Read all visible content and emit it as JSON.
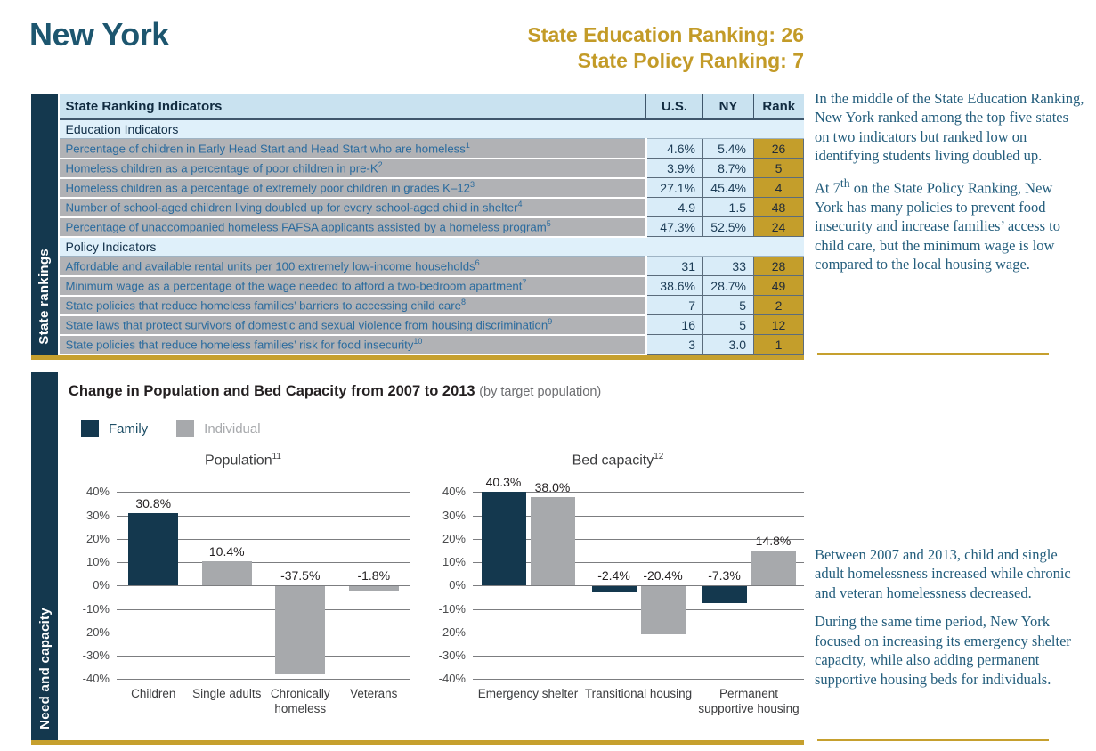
{
  "colors": {
    "dark_teal": "#14384e",
    "gold": "#c6a02e",
    "table_label_blue": "#2a6b9e",
    "rank_cell_gold": "#c49e2b",
    "individual_gray": "#a7a9ac",
    "serif_text_blue": "#235d7c"
  },
  "header": {
    "state_name": "New York",
    "education_ranking": "State Education Ranking: 26",
    "policy_ranking": "State Policy Ranking: 7"
  },
  "rankings_table": {
    "sidebar_label": "State rankings",
    "columns": {
      "indicator": "State Ranking Indicators",
      "us": "U.S.",
      "ny": "NY",
      "rank": "Rank"
    },
    "section1": "Education Indicators",
    "section2": "Policy Indicators",
    "rows": [
      {
        "label": "Percentage of children in Early Head Start and Head Start who are homeless",
        "sup": "1",
        "us": "4.6%",
        "ny": "5.4%",
        "rank": "26"
      },
      {
        "label": "Homeless children as a percentage of poor children in pre-K",
        "sup": "2",
        "us": "3.9%",
        "ny": "8.7%",
        "rank": "5"
      },
      {
        "label": "Homeless children as a percentage of extremely poor children in grades K–12",
        "sup": "3",
        "us": "27.1%",
        "ny": "45.4%",
        "rank": "4"
      },
      {
        "label": "Number of school-aged children living doubled up for every school-aged child in shelter",
        "sup": "4",
        "us": "4.9",
        "ny": "1.5",
        "rank": "48"
      },
      {
        "label": "Percentage of unaccompanied homeless FAFSA applicants assisted by a homeless program",
        "sup": "5",
        "us": "47.3%",
        "ny": "52.5%",
        "rank": "24"
      },
      {
        "label": "Affordable and available rental units per 100 extremely low-income households",
        "sup": "6",
        "us": "31",
        "ny": "33",
        "rank": "28"
      },
      {
        "label": "Minimum wage as a percentage of the wage needed to afford a two-bedroom apartment",
        "sup": "7",
        "us": "38.6%",
        "ny": "28.7%",
        "rank": "49"
      },
      {
        "label": "State policies that reduce homeless families’ barriers to accessing child care",
        "sup": "8",
        "us": "7",
        "ny": "5",
        "rank": "2"
      },
      {
        "label": "State laws that protect survivors of domestic and sexual violence from housing discrimination",
        "sup": "9",
        "us": "16",
        "ny": "5",
        "rank": "12"
      },
      {
        "label": "State policies that reduce homeless families’ risk for food insecurity",
        "sup": "10",
        "us": "3",
        "ny": "3.0",
        "rank": "1"
      }
    ]
  },
  "commentary": {
    "para1": "In the middle of the State Education Ranking, New York ranked among the top five states on two indicators but ranked low on identifying students living doubled up.",
    "para2_pre": "At 7",
    "para2_sup": "th",
    "para2_post": " on the State Policy Ranking, New York has many policies to prevent food insecurity and increase families’ access to child care, but the minimum wage is low compared to the local housing wage.",
    "para3": "Between 2007 and 2013, child and single adult homelessness increased while chronic and veteran homelessness decreased.",
    "para4": "During the same time period, New York focused on increasing its emergency shelter capacity, while also adding permanent supportive housing beds for individuals."
  },
  "need_capacity": {
    "sidebar_label": "Need and capacity",
    "title": "Change in Population and Bed Capacity from 2007 to 2013",
    "subtitle": "(by target population)",
    "legend": [
      {
        "label": "Family",
        "color": "#14384e",
        "label_color": "#1d4e66"
      },
      {
        "label": "Individual",
        "color": "#a7a9ac",
        "label_color": "#a7a9ac"
      }
    ]
  },
  "chart_data": [
    {
      "type": "bar",
      "title": "Population",
      "title_superscript": "11",
      "ylabel": "",
      "xlabel": "",
      "ylim": [
        -40,
        40
      ],
      "grid": true,
      "yticks": [
        "40%",
        "30%",
        "20%",
        "10%",
        "0%",
        "-10%",
        "-20%",
        "-30%",
        "-40%"
      ],
      "series_colors": {
        "Family": "#14384e",
        "Individual": "#a7a9ac"
      },
      "categories": [
        {
          "label": "Children",
          "bars": [
            {
              "series": "Family",
              "value": 30.8,
              "label": "30.8%"
            }
          ]
        },
        {
          "label": "Single adults",
          "bars": [
            {
              "series": "Individual",
              "value": 10.4,
              "label": "10.4%"
            }
          ]
        },
        {
          "label": "Chronically homeless",
          "bars": [
            {
              "series": "Individual",
              "value": -37.5,
              "label": "-37.5%"
            }
          ]
        },
        {
          "label": "Veterans",
          "bars": [
            {
              "series": "Individual",
              "value": -1.8,
              "label": "-1.8%"
            }
          ]
        }
      ]
    },
    {
      "type": "bar",
      "title": "Bed capacity",
      "title_superscript": "12",
      "ylabel": "",
      "xlabel": "",
      "ylim": [
        -40,
        40
      ],
      "grid": true,
      "yticks": [
        "40%",
        "30%",
        "20%",
        "10%",
        "0%",
        "-10%",
        "-20%",
        "-30%",
        "-40%"
      ],
      "series_colors": {
        "Family": "#14384e",
        "Individual": "#a7a9ac"
      },
      "categories": [
        {
          "label": "Emergency shelter",
          "bars": [
            {
              "series": "Family",
              "value": 40.3,
              "label": "40.3%"
            },
            {
              "series": "Individual",
              "value": 38.0,
              "label": "38.0%"
            }
          ]
        },
        {
          "label": "Transitional housing",
          "bars": [
            {
              "series": "Family",
              "value": -2.4,
              "label": "-2.4%"
            },
            {
              "series": "Individual",
              "value": -20.4,
              "label": "-20.4%"
            }
          ]
        },
        {
          "label": "Permanent supportive housing",
          "bars": [
            {
              "series": "Family",
              "value": -7.3,
              "label": "-7.3%"
            },
            {
              "series": "Individual",
              "value": 14.8,
              "label": "14.8%"
            }
          ]
        }
      ]
    }
  ]
}
